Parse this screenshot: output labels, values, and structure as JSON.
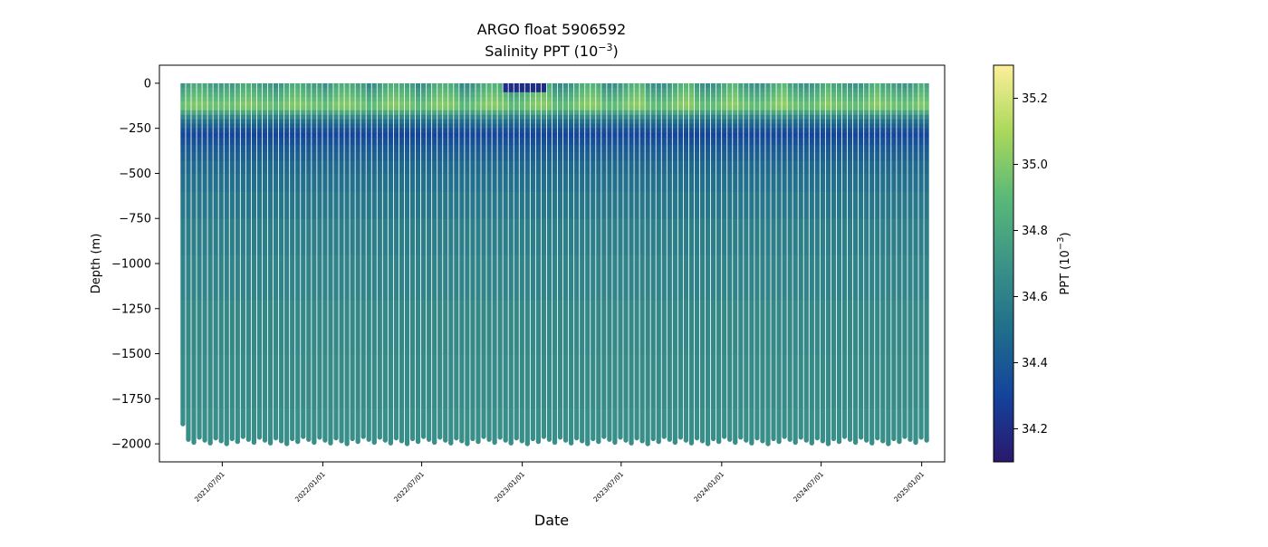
{
  "chart_data": {
    "type": "scatter",
    "title": "ARGO float 5906592",
    "subtitle_prefix": "Salinity PPT (10",
    "subtitle_exponent": "−3",
    "subtitle_suffix": ")",
    "xlabel": "Date",
    "ylabel": "Depth (m)",
    "ylim": [
      -2100,
      100
    ],
    "xlim": [
      "2021-03-08",
      "2025-02-12"
    ],
    "x_ticks": [
      "2021/07/01",
      "2022/01/01",
      "2022/07/01",
      "2023/01/01",
      "2023/07/01",
      "2024/01/01",
      "2024/07/01",
      "2025/01/01"
    ],
    "y_ticks": [
      0,
      -250,
      -500,
      -750,
      -1000,
      -1250,
      -1500,
      -1750,
      -2000
    ],
    "profiles": {
      "first_date": "2021-04-20",
      "last_date": "2025-01-10",
      "cycle_days": 10,
      "surface_depth": 0,
      "max_depth_min": -2000,
      "max_depth_max": -1960,
      "first_profile_max_depth": -1890
    },
    "salinity_structure": [
      {
        "depth": 0,
        "value": 34.75
      },
      {
        "depth": -50,
        "value": 34.85
      },
      {
        "depth": -130,
        "value": 35.0
      },
      {
        "depth": -200,
        "value": 34.55
      },
      {
        "depth": -280,
        "value": 34.3
      },
      {
        "depth": -350,
        "value": 34.4
      },
      {
        "depth": -500,
        "value": 34.5
      },
      {
        "depth": -800,
        "value": 34.58
      },
      {
        "depth": -1200,
        "value": 34.63
      },
      {
        "depth": -2000,
        "value": 34.68
      }
    ],
    "colorbar": {
      "label_prefix": "PPT (10",
      "label_exponent": "−3",
      "label_suffix": ")",
      "vmin": 34.1,
      "vmax": 35.3,
      "ticks": [
        "34.2",
        "34.4",
        "34.6",
        "34.8",
        "35.0",
        "35.2"
      ],
      "colormap": "haline",
      "colors": [
        "#2a186c",
        "#14439c",
        "#206e8b",
        "#3c9387",
        "#5ab978",
        "#aad85c",
        "#fdef9a"
      ]
    }
  }
}
